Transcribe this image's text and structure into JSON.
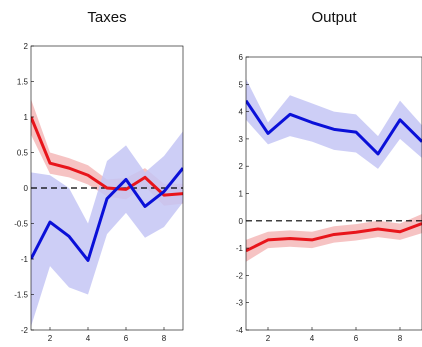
{
  "chart_data": [
    {
      "type": "line",
      "title": "Taxes",
      "xlim": [
        1,
        9
      ],
      "ylim": [
        -2,
        2
      ],
      "xticks": [
        2,
        4,
        6,
        8
      ],
      "yticks": [
        -2,
        -1.5,
        -1,
        -0.5,
        0,
        0.5,
        1,
        1.5,
        2
      ],
      "ytick_labels": [
        "-2",
        "-1.5",
        "-1",
        "-0.5",
        "0",
        "0.5",
        "1",
        "1.5",
        "2"
      ],
      "x": [
        1,
        2,
        3,
        4,
        5,
        6,
        7,
        8,
        9
      ],
      "zero_line": true,
      "series": [
        {
          "color": "#e8151b",
          "band_color": "#f5b8b8",
          "values": [
            1.0,
            0.35,
            0.28,
            0.18,
            0.0,
            -0.02,
            0.15,
            -0.1,
            -0.08
          ],
          "lower": [
            0.75,
            0.2,
            0.15,
            0.05,
            -0.12,
            -0.16,
            0.02,
            -0.25,
            -0.22
          ],
          "upper": [
            1.25,
            0.5,
            0.42,
            0.32,
            0.12,
            0.14,
            0.28,
            0.06,
            0.06
          ]
        },
        {
          "color": "#0a10d8",
          "band_color": "#c4c6f5",
          "values": [
            -1.0,
            -0.48,
            -0.68,
            -1.02,
            -0.15,
            0.12,
            -0.26,
            -0.05,
            0.28
          ],
          "lower": [
            -1.95,
            -1.1,
            -1.4,
            -1.5,
            -0.65,
            -0.35,
            -0.7,
            -0.55,
            -0.2
          ],
          "upper": [
            0.22,
            0.18,
            0.0,
            -0.5,
            0.38,
            0.6,
            0.22,
            0.45,
            0.8
          ]
        }
      ]
    },
    {
      "type": "line",
      "title": "Output",
      "xlim": [
        1,
        9
      ],
      "ylim": [
        -4,
        6
      ],
      "xticks": [
        2,
        4,
        6,
        8
      ],
      "yticks": [
        -4,
        -3,
        -2,
        -1,
        0,
        1,
        2,
        3,
        4,
        5,
        6
      ],
      "ytick_labels": [
        "-4",
        "-3",
        "-2",
        "-1",
        "0",
        "1",
        "2",
        "3",
        "4",
        "5",
        "6"
      ],
      "x": [
        1,
        2,
        3,
        4,
        5,
        6,
        7,
        8,
        9
      ],
      "zero_line": true,
      "series": [
        {
          "color": "#0a10d8",
          "band_color": "#c4c6f5",
          "values": [
            4.4,
            3.2,
            3.9,
            3.6,
            3.35,
            3.25,
            2.45,
            3.7,
            2.9
          ],
          "lower": [
            3.7,
            2.8,
            3.1,
            2.9,
            2.6,
            2.5,
            1.9,
            3.0,
            2.3
          ],
          "upper": [
            5.2,
            3.6,
            4.6,
            4.3,
            4.0,
            3.9,
            3.1,
            4.4,
            3.5
          ]
        },
        {
          "color": "#e8151b",
          "band_color": "#f5b8b8",
          "values": [
            -1.1,
            -0.7,
            -0.65,
            -0.7,
            -0.5,
            -0.42,
            -0.3,
            -0.4,
            -0.1
          ],
          "lower": [
            -1.5,
            -1.0,
            -0.95,
            -1.0,
            -0.8,
            -0.72,
            -0.6,
            -0.7,
            -0.45
          ],
          "upper": [
            -0.7,
            -0.4,
            -0.35,
            -0.4,
            -0.2,
            -0.12,
            0.0,
            -0.1,
            0.25
          ]
        }
      ]
    }
  ]
}
